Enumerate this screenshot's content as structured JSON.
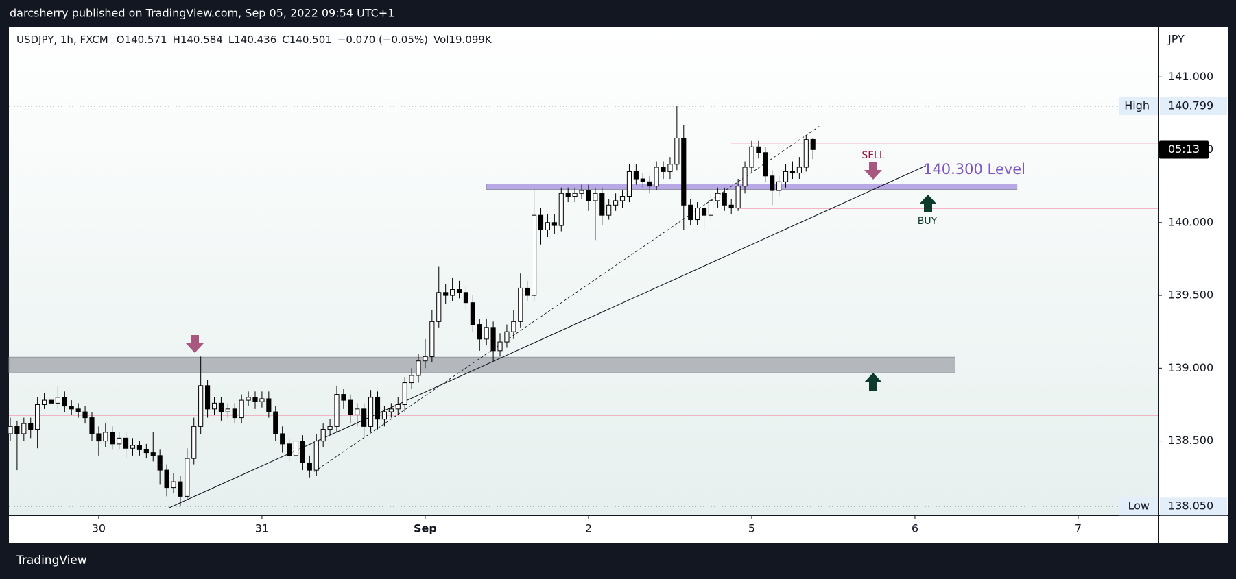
{
  "header": {
    "publisher": "darcsherry published on TradingView.com, Sep 05, 2022 09:54 UTC+1"
  },
  "footer": {
    "brand": "TradingView"
  },
  "chart_data": {
    "type": "candlestick",
    "symbol": "USDJPY, 1h, FXCM",
    "legend_labels": [
      "O",
      "H",
      "L",
      "C"
    ],
    "change": "−0.070 (−0.05%)",
    "volume": "Vol19.099K",
    "currency": "JPY",
    "colors": {
      "up": "#ffffff",
      "down": "#000000",
      "wick": "#000000"
    },
    "ohlc": [
      [
        138.55,
        138.66,
        138.5,
        138.6
      ],
      [
        138.6,
        138.64,
        138.3,
        138.55
      ],
      [
        138.55,
        138.66,
        138.5,
        138.62
      ],
      [
        138.62,
        138.66,
        138.52,
        138.58
      ],
      [
        138.58,
        138.8,
        138.45,
        138.75
      ],
      [
        138.75,
        138.83,
        138.72,
        138.78
      ],
      [
        138.78,
        138.82,
        138.72,
        138.76
      ],
      [
        138.76,
        138.88,
        138.72,
        138.8
      ],
      [
        138.8,
        138.84,
        138.7,
        138.74
      ],
      [
        138.74,
        138.78,
        138.68,
        138.72
      ],
      [
        138.72,
        138.76,
        138.66,
        138.7
      ],
      [
        138.7,
        138.74,
        138.62,
        138.66
      ],
      [
        138.66,
        138.7,
        138.5,
        138.55
      ],
      [
        138.55,
        138.6,
        138.4,
        138.5
      ],
      [
        138.5,
        138.62,
        138.46,
        138.56
      ],
      [
        138.56,
        138.6,
        138.44,
        138.48
      ],
      [
        138.48,
        138.56,
        138.44,
        138.52
      ],
      [
        138.52,
        138.56,
        138.38,
        138.45
      ],
      [
        138.45,
        138.52,
        138.4,
        138.47
      ],
      [
        138.47,
        138.5,
        138.4,
        138.44
      ],
      [
        138.44,
        138.48,
        138.38,
        138.42
      ],
      [
        138.42,
        138.56,
        138.36,
        138.4
      ],
      [
        138.4,
        138.44,
        138.2,
        138.3
      ],
      [
        138.3,
        138.34,
        138.12,
        138.18
      ],
      [
        138.18,
        138.28,
        138.14,
        138.22
      ],
      [
        138.22,
        138.26,
        138.05,
        138.12
      ],
      [
        138.12,
        138.45,
        138.1,
        138.38
      ],
      [
        138.38,
        138.66,
        138.34,
        138.6
      ],
      [
        138.6,
        139.08,
        138.55,
        138.88
      ],
      [
        138.88,
        138.92,
        138.66,
        138.72
      ],
      [
        138.72,
        138.8,
        138.68,
        138.76
      ],
      [
        138.76,
        138.8,
        138.64,
        138.7
      ],
      [
        138.7,
        138.76,
        138.66,
        138.72
      ],
      [
        138.72,
        138.76,
        138.62,
        138.66
      ],
      [
        138.66,
        138.82,
        138.62,
        138.78
      ],
      [
        138.78,
        138.84,
        138.74,
        138.8
      ],
      [
        138.8,
        138.84,
        138.72,
        138.77
      ],
      [
        138.77,
        138.84,
        138.73,
        138.79
      ],
      [
        138.79,
        138.84,
        138.66,
        138.7
      ],
      [
        138.7,
        138.74,
        138.5,
        138.55
      ],
      [
        138.55,
        138.6,
        138.42,
        138.48
      ],
      [
        138.48,
        138.52,
        138.36,
        138.4
      ],
      [
        138.4,
        138.55,
        138.36,
        138.5
      ],
      [
        138.5,
        138.54,
        138.3,
        138.35
      ],
      [
        138.35,
        138.4,
        138.25,
        138.3
      ],
      [
        138.3,
        138.55,
        138.26,
        138.5
      ],
      [
        138.5,
        138.62,
        138.46,
        138.58
      ],
      [
        138.58,
        138.65,
        138.54,
        138.6
      ],
      [
        138.6,
        138.88,
        138.56,
        138.82
      ],
      [
        138.82,
        138.86,
        138.72,
        138.78
      ],
      [
        138.78,
        138.82,
        138.62,
        138.68
      ],
      [
        138.68,
        138.76,
        138.6,
        138.72
      ],
      [
        138.72,
        138.76,
        138.52,
        138.6
      ],
      [
        138.6,
        138.85,
        138.56,
        138.8
      ],
      [
        138.8,
        138.84,
        138.58,
        138.65
      ],
      [
        138.65,
        138.74,
        138.6,
        138.7
      ],
      [
        138.7,
        138.76,
        138.66,
        138.72
      ],
      [
        138.72,
        138.8,
        138.68,
        138.75
      ],
      [
        138.75,
        138.94,
        138.7,
        138.9
      ],
      [
        138.9,
        139.0,
        138.86,
        138.95
      ],
      [
        138.95,
        139.1,
        138.9,
        139.05
      ],
      [
        139.05,
        139.2,
        139.0,
        139.08
      ],
      [
        139.08,
        139.4,
        139.04,
        139.32
      ],
      [
        139.32,
        139.7,
        139.28,
        139.52
      ],
      [
        139.52,
        139.58,
        139.44,
        139.5
      ],
      [
        139.5,
        139.62,
        139.46,
        139.54
      ],
      [
        139.54,
        139.6,
        139.48,
        139.52
      ],
      [
        139.52,
        139.56,
        139.4,
        139.45
      ],
      [
        139.45,
        139.5,
        139.25,
        139.3
      ],
      [
        139.3,
        139.34,
        139.12,
        139.2
      ],
      [
        139.2,
        139.34,
        139.16,
        139.28
      ],
      [
        139.28,
        139.32,
        139.05,
        139.12
      ],
      [
        139.12,
        139.24,
        139.08,
        139.18
      ],
      [
        139.18,
        139.3,
        139.14,
        139.25
      ],
      [
        139.25,
        139.4,
        139.2,
        139.32
      ],
      [
        139.32,
        139.65,
        139.28,
        139.55
      ],
      [
        139.55,
        139.6,
        139.46,
        139.5
      ],
      [
        139.5,
        140.22,
        139.46,
        140.05
      ],
      [
        140.05,
        140.1,
        139.85,
        139.95
      ],
      [
        139.95,
        140.06,
        139.9,
        140.0
      ],
      [
        140.0,
        140.06,
        139.92,
        139.98
      ],
      [
        139.98,
        140.24,
        139.94,
        140.2
      ],
      [
        140.2,
        140.24,
        140.14,
        140.18
      ],
      [
        140.18,
        140.24,
        140.14,
        140.2
      ],
      [
        140.2,
        140.26,
        140.16,
        140.22
      ],
      [
        140.22,
        140.26,
        140.08,
        140.15
      ],
      [
        140.15,
        140.24,
        139.88,
        140.2
      ],
      [
        140.2,
        140.24,
        139.98,
        140.05
      ],
      [
        140.05,
        140.16,
        140.02,
        140.12
      ],
      [
        140.12,
        140.2,
        140.08,
        140.15
      ],
      [
        140.15,
        140.22,
        140.1,
        140.18
      ],
      [
        140.18,
        140.4,
        140.14,
        140.35
      ],
      [
        140.35,
        140.4,
        140.26,
        140.3
      ],
      [
        140.3,
        140.34,
        140.24,
        140.28
      ],
      [
        140.28,
        140.32,
        140.2,
        140.25
      ],
      [
        140.25,
        140.42,
        140.22,
        140.38
      ],
      [
        140.38,
        140.42,
        140.3,
        140.35
      ],
      [
        140.35,
        140.45,
        140.3,
        140.4
      ],
      [
        140.4,
        140.8,
        140.36,
        140.58
      ],
      [
        140.58,
        140.67,
        139.95,
        140.12
      ],
      [
        140.12,
        140.16,
        139.98,
        140.02
      ],
      [
        140.02,
        140.14,
        139.98,
        140.1
      ],
      [
        140.1,
        140.14,
        139.95,
        140.05
      ],
      [
        140.05,
        140.2,
        140.02,
        140.15
      ],
      [
        140.15,
        140.24,
        140.1,
        140.2
      ],
      [
        140.2,
        140.24,
        140.08,
        140.12
      ],
      [
        140.12,
        140.16,
        140.06,
        140.1
      ],
      [
        140.1,
        140.3,
        140.08,
        140.25
      ],
      [
        140.25,
        140.42,
        140.2,
        140.38
      ],
      [
        140.38,
        140.56,
        140.34,
        140.52
      ],
      [
        140.52,
        140.56,
        140.44,
        140.48
      ],
      [
        140.48,
        140.52,
        140.28,
        140.32
      ],
      [
        140.32,
        140.36,
        140.12,
        140.22
      ],
      [
        140.22,
        140.32,
        140.18,
        140.28
      ],
      [
        140.28,
        140.4,
        140.24,
        140.35
      ],
      [
        140.35,
        140.42,
        140.3,
        140.34
      ],
      [
        140.34,
        140.45,
        140.3,
        140.38
      ],
      [
        140.38,
        140.6,
        140.35,
        140.57
      ],
      [
        140.571,
        140.584,
        140.436,
        140.501
      ]
    ],
    "xlim": [
      -0.2,
      168.8
    ],
    "xticks": [
      {
        "value": 13,
        "label": "30"
      },
      {
        "value": 37,
        "label": "31"
      },
      {
        "value": 61,
        "label": "Sep"
      },
      {
        "value": 85,
        "label": "2"
      },
      {
        "value": 109,
        "label": "5"
      },
      {
        "value": 133,
        "label": "6"
      },
      {
        "value": 157,
        "label": "7"
      }
    ],
    "ylim": [
      137.99,
      141.34
    ],
    "yticks": [
      {
        "value": 141,
        "label": "141.000"
      },
      {
        "value": 140.5,
        "label": "140.500"
      },
      {
        "value": 140,
        "label": "140.000"
      },
      {
        "value": 139.5,
        "label": "139.500"
      },
      {
        "value": 139,
        "label": "139.000"
      },
      {
        "value": 138.5,
        "label": "138.500"
      }
    ],
    "high": {
      "label": "High",
      "value": 140.799,
      "value_label": "140.799"
    },
    "low": {
      "label": "Low",
      "value": 138.05,
      "value_label": "138.050"
    },
    "countdown": {
      "label": "05:13",
      "value": 140.5
    },
    "zones": [
      {
        "from": 140.227,
        "to": 140.265,
        "x": [
          70,
          148
        ],
        "color": "#b8a9e6"
      },
      {
        "from": 138.968,
        "to": 139.076,
        "x": [
          -0.2,
          138.9
        ],
        "color": "#b4b7bc"
      }
    ],
    "hlines": [
      {
        "value": 140.546,
        "x": [
          106,
          168.8
        ],
        "color": "#f2a0b4"
      },
      {
        "value": 140.097,
        "x": [
          106.8,
          168.8
        ],
        "color": "#f2a0b4"
      },
      {
        "value": 138.676,
        "x": [
          -0.2,
          168.8
        ],
        "color": "#f2a0b4"
      }
    ],
    "trendlines": [
      {
        "x": [
          23.3,
          134.6
        ],
        "y": [
          138.04,
          140.39
        ],
        "dashed": false
      },
      {
        "x": [
          44.7,
          118.9
        ],
        "y": [
          138.29,
          140.66
        ],
        "dashed": true
      }
    ],
    "annotations": {
      "level": "140.300 Level",
      "sell": "SELL",
      "buy": "BUY"
    }
  }
}
